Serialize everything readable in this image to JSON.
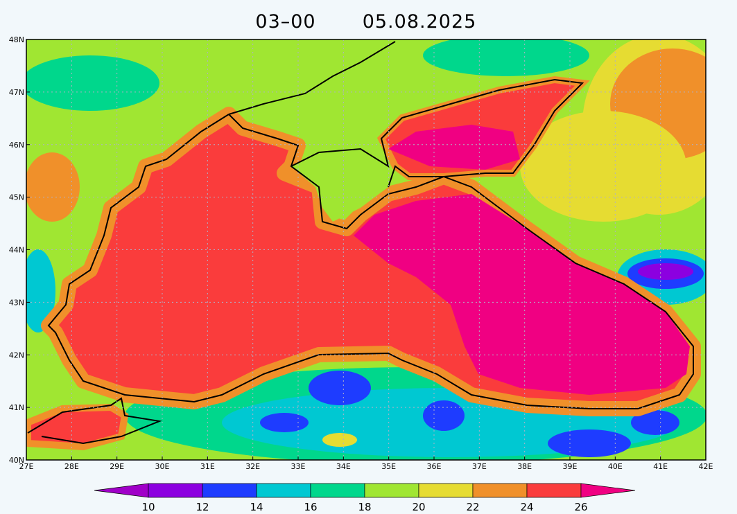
{
  "title": {
    "time": "03–00",
    "date": "05.08.2025"
  },
  "lat_labels": [
    "48N",
    "47N",
    "46N",
    "45N",
    "44N",
    "43N",
    "42N",
    "41N",
    "40N"
  ],
  "lon_labels": [
    "27E",
    "28E",
    "29E",
    "30E",
    "31E",
    "32E",
    "33E",
    "34E",
    "35E",
    "36E",
    "37E",
    "38E",
    "39E",
    "40E",
    "41E",
    "42E"
  ],
  "colorbar": {
    "labels": [
      10,
      12,
      14,
      16,
      18,
      20,
      22,
      24,
      26
    ],
    "colors": [
      "#a000c8",
      "#8c00e0",
      "#1e3cff",
      "#00c8d2",
      "#00d78c",
      "#a0e632",
      "#e6dc32",
      "#f0902a",
      "#fa3c3c",
      "#f00082"
    ]
  }
}
